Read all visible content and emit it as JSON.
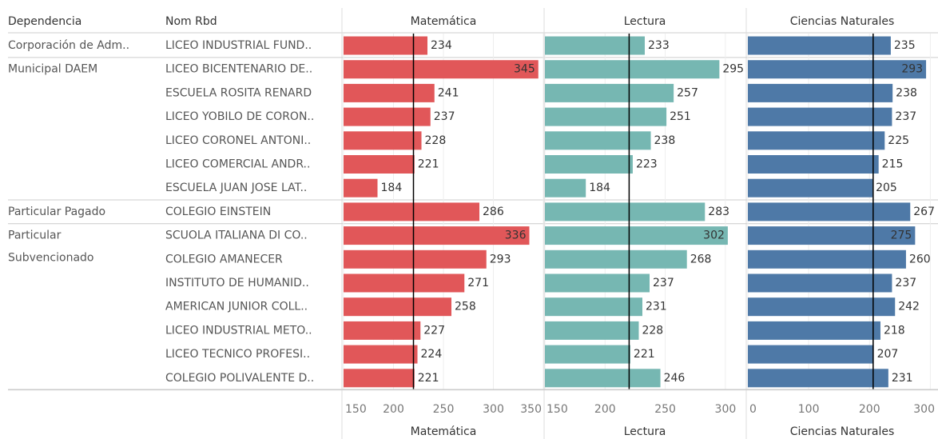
{
  "headers": [
    "Dependencia",
    "Nom Rbd"
  ],
  "groups": [
    {
      "name": [
        "Corporación de Adm.."
      ],
      "rows": [
        "LICEO INDUSTRIAL FUND.."
      ]
    },
    {
      "name": [
        "Municipal DAEM"
      ],
      "rows": [
        "LICEO BICENTENARIO DE..",
        "ESCUELA ROSITA RENARD",
        "LICEO YOBILO DE CORON..",
        "LICEO CORONEL ANTONI..",
        "LICEO COMERCIAL ANDR..",
        "ESCUELA JUAN JOSE LAT.."
      ]
    },
    {
      "name": [
        "Particular Pagado"
      ],
      "rows": [
        "COLEGIO EINSTEIN"
      ]
    },
    {
      "name": [
        "Particular",
        "Subvencionado"
      ],
      "rows": [
        "SCUOLA ITALIANA DI CO..",
        "COLEGIO AMANECER",
        "INSTITUTO DE HUMANID..",
        "AMERICAN JUNIOR COLL..",
        "LICEO INDUSTRIAL METO..",
        "LICEO TECNICO PROFESI..",
        "COLEGIO POLIVALENTE D.."
      ]
    }
  ],
  "chart_data": [
    {
      "type": "bar",
      "title": "Matemática",
      "color": "#e15759",
      "values": [
        234,
        345,
        241,
        237,
        228,
        221,
        184,
        286,
        336,
        293,
        271,
        258,
        227,
        224,
        221
      ],
      "xlim": [
        150,
        350
      ],
      "xticks": [
        150,
        200,
        250,
        300,
        350
      ],
      "reference_line": 220,
      "grid": true
    },
    {
      "type": "bar",
      "title": "Lectura",
      "color": "#76b7b2",
      "values": [
        233,
        295,
        257,
        251,
        238,
        223,
        184,
        283,
        302,
        268,
        237,
        231,
        228,
        221,
        246
      ],
      "xlim": [
        150,
        316
      ],
      "xticks": [
        150,
        200,
        250,
        300
      ],
      "reference_line": 220,
      "grid": true
    },
    {
      "type": "bar",
      "title": "Ciencias Naturales",
      "color": "#4e79a7",
      "values": [
        235,
        293,
        238,
        237,
        225,
        215,
        205,
        267,
        275,
        260,
        237,
        242,
        218,
        207,
        231
      ],
      "xlim": [
        0,
        310
      ],
      "xticks": [
        0,
        100,
        200,
        300
      ],
      "reference_line": 206,
      "grid": true
    }
  ]
}
